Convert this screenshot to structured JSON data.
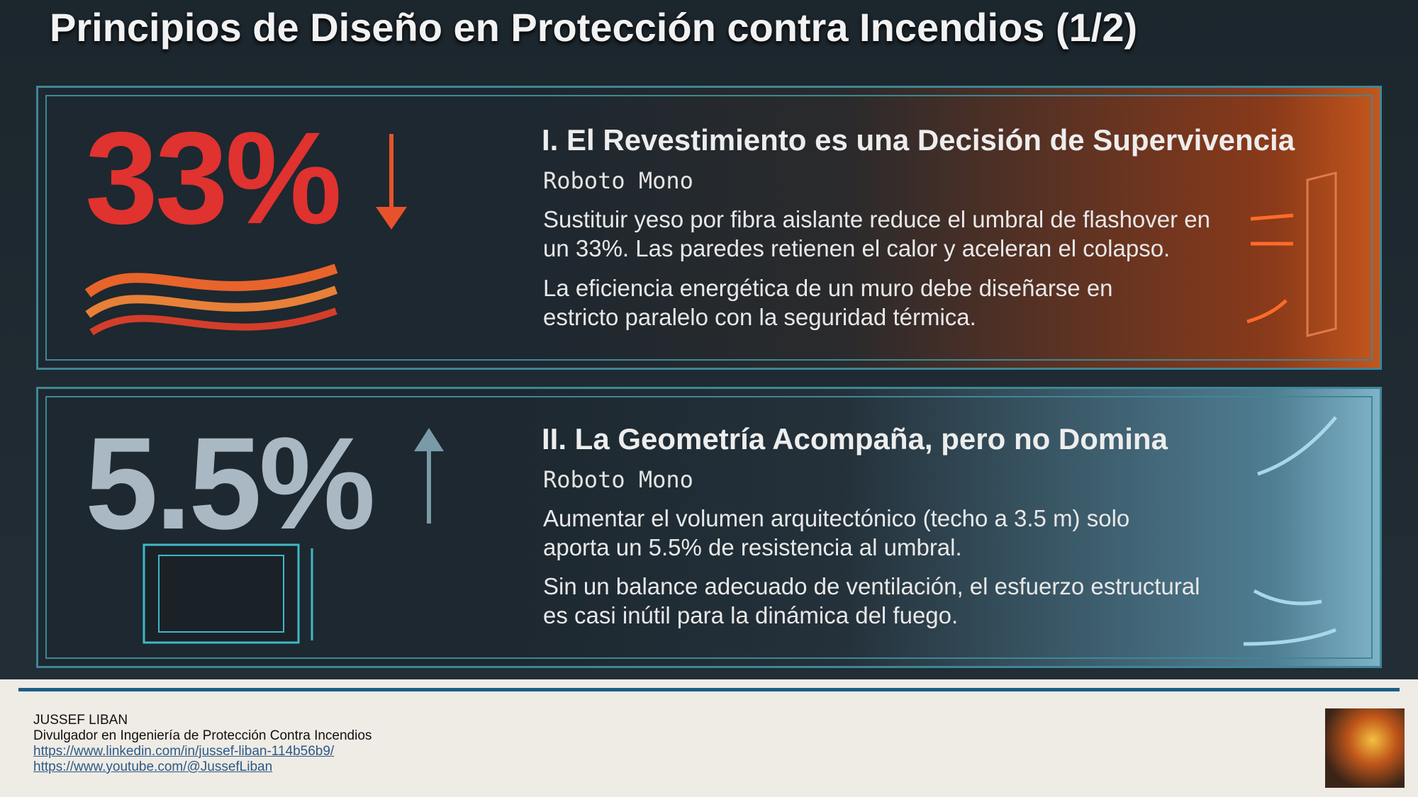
{
  "title": "Principios de Diseño en Protección contra Incendios (1/2)",
  "cards": [
    {
      "stat": "33%",
      "heading": "I. El Revestimiento es una Decisión de Supervivencia",
      "subheading": "Roboto Mono",
      "paragraphs": [
        "Sustituir yeso por fibra aislante reduce el umbral de flashover en un 33%. Las paredes retienen el calor y aceleran el colapso.",
        "La eficiencia energética de un muro debe diseñarse en estricto paralelo con la seguridad térmica."
      ]
    },
    {
      "stat": "5.5%",
      "heading": "II. La Geometría Acompaña, pero no Domina",
      "subheading": "Roboto Mono",
      "paragraphs": [
        "Aumentar el volumen arquitectónico (techo a 3.5 m) solo aporta un 5.5% de resistencia al umbral.",
        "Sin un balance adecuado de ventilación, el esfuerzo estructural es casi inútil para la dinámica del fuego."
      ]
    }
  ],
  "footer": {
    "name": "JUSSEF LIBAN",
    "role": "Divulgador en Ingeniería de Protección Contra Incendios",
    "links": [
      "https://www.linkedin.com/in/jussef-liban-114b56b9/",
      "https://www.youtube.com/@JussefLiban"
    ]
  }
}
